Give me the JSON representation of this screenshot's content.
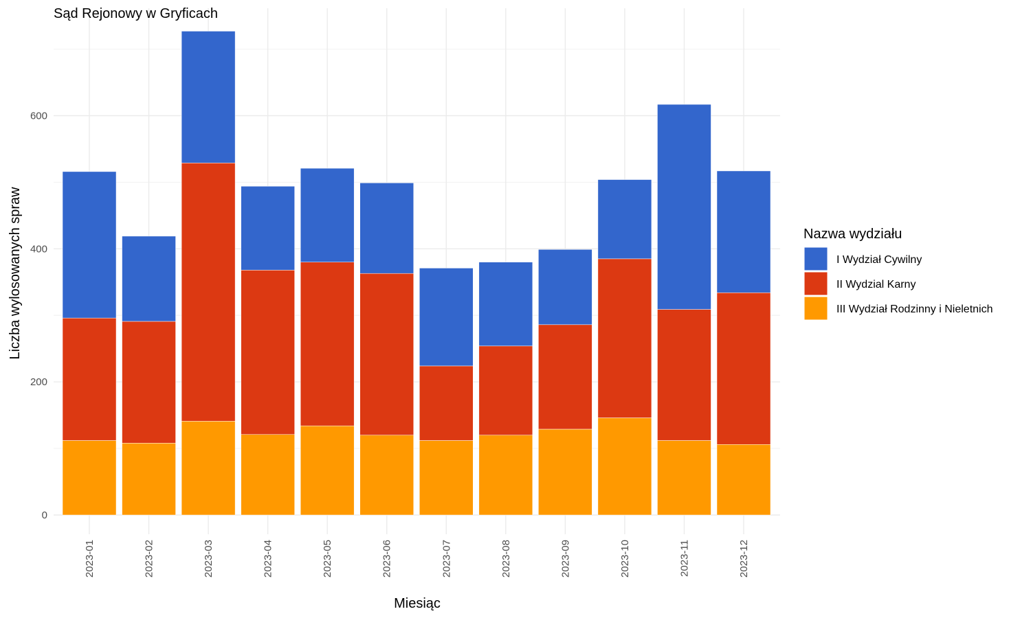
{
  "chart_data": {
    "type": "bar",
    "stacked": true,
    "title": "Sąd Rejonowy w Gryficach",
    "xlabel": "Miesiąc",
    "ylabel": "Liczba wylosowanych spraw",
    "ylim": [
      0,
      730
    ],
    "yticks": [
      0,
      200,
      400,
      600
    ],
    "grid": true,
    "legend_title": "Nazwa wydziału",
    "legend_position": "right",
    "categories": [
      "2023-01",
      "2023-02",
      "2023-03",
      "2023-04",
      "2023-05",
      "2023-06",
      "2023-07",
      "2023-08",
      "2023-09",
      "2023-10",
      "2023-11",
      "2023-12"
    ],
    "series": [
      {
        "name": "III Wydział Rodzinny i Nieletnich",
        "color": "#FF9900",
        "values": [
          112,
          108,
          141,
          121,
          134,
          120,
          112,
          120,
          129,
          146,
          112,
          106
        ]
      },
      {
        "name": "II Wydzial Karny",
        "color": "#DC3912",
        "values": [
          184,
          183,
          388,
          247,
          246,
          243,
          112,
          134,
          157,
          239,
          197,
          228
        ]
      },
      {
        "name": "I Wydział Cywilny",
        "color": "#3366CC",
        "values": [
          220,
          128,
          198,
          126,
          141,
          136,
          147,
          126,
          113,
          119,
          308,
          183
        ]
      }
    ],
    "legend_order": [
      "I Wydział Cywilny",
      "II Wydzial Karny",
      "III Wydział Rodzinny i Nieletnich"
    ]
  }
}
